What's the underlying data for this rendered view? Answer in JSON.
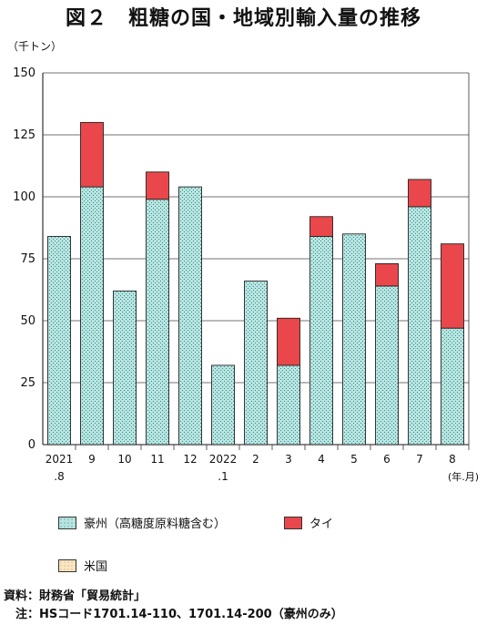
{
  "title": "図２　粗糖の国・地域別輸入量の推移",
  "unit_label": "（千トン）",
  "colors": {
    "australia": "#9fd3cf",
    "thailand": "#e9474b",
    "usa": "#f6d7a8",
    "grid": "#555555"
  },
  "chart_data": {
    "type": "bar",
    "stacked": true,
    "ylim": [
      0,
      150
    ],
    "yticks": [
      0,
      25,
      50,
      75,
      100,
      125,
      150
    ],
    "x_unit_label": "(年.月)",
    "categories": [
      {
        "line1": "2021",
        "line2": ".8"
      },
      {
        "line1": "9",
        "line2": ""
      },
      {
        "line1": "10",
        "line2": ""
      },
      {
        "line1": "11",
        "line2": ""
      },
      {
        "line1": "12",
        "line2": ""
      },
      {
        "line1": "2022",
        "line2": ".1"
      },
      {
        "line1": "2",
        "line2": ""
      },
      {
        "line1": "3",
        "line2": ""
      },
      {
        "line1": "4",
        "line2": ""
      },
      {
        "line1": "5",
        "line2": ""
      },
      {
        "line1": "6",
        "line2": ""
      },
      {
        "line1": "7",
        "line2": ""
      },
      {
        "line1": "8",
        "line2": ""
      }
    ],
    "series": [
      {
        "name": "豪州（高糖度原料糖含む）",
        "key": "australia",
        "values": [
          84,
          104,
          62,
          99,
          104,
          32,
          66,
          32,
          84,
          85,
          64,
          96,
          47
        ]
      },
      {
        "name": "タイ",
        "key": "thailand",
        "values": [
          0,
          26,
          0,
          11,
          0,
          0,
          0,
          19,
          8,
          0,
          9,
          11,
          34
        ]
      },
      {
        "name": "米国",
        "key": "usa",
        "values": [
          0,
          0,
          0,
          0,
          0,
          0,
          0,
          0,
          0,
          0,
          0,
          0,
          0
        ]
      }
    ]
  },
  "legend": {
    "australia": "豪州（高糖度原料糖含む）",
    "thailand": "タイ",
    "usa": "米国"
  },
  "footer": {
    "source": "資料：財務省「貿易統計」",
    "note": "　注：HSコード1701.14-110、1701.14-200（豪州のみ）"
  }
}
